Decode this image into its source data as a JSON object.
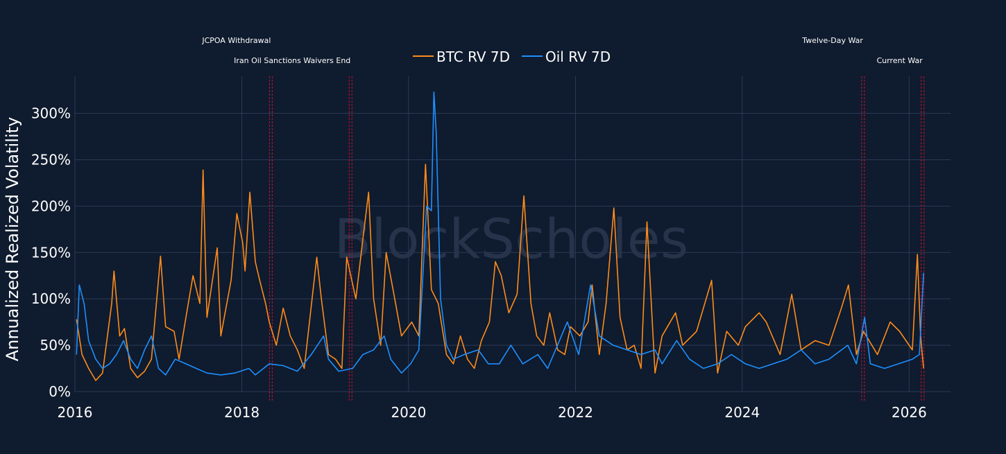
{
  "colors": {
    "background": "#0f1b2e",
    "grid": "#2b3a57",
    "text": "#ffffff",
    "btc": "#ff8c1a",
    "oil": "#1e90ff",
    "event_line": "#c8102e",
    "watermark": "#26334a"
  },
  "watermark": "BlockScholes",
  "chart_data": {
    "type": "line",
    "title": "",
    "xlabel": "",
    "ylabel": "Annualized Realized Volatility",
    "xlim": [
      "2016-01-01",
      "2026-07-01"
    ],
    "ylim": [
      0,
      340
    ],
    "x_ticks": [
      {
        "date": "2016-01-01",
        "label": "2016"
      },
      {
        "date": "2018-01-01",
        "label": "2018"
      },
      {
        "date": "2020-01-01",
        "label": "2020"
      },
      {
        "date": "2022-01-01",
        "label": "2022"
      },
      {
        "date": "2024-01-01",
        "label": "2024"
      },
      {
        "date": "2026-01-01",
        "label": "2026"
      }
    ],
    "y_ticks": [
      {
        "value": 0,
        "label": "0%"
      },
      {
        "value": 50,
        "label": "50%"
      },
      {
        "value": 100,
        "label": "100%"
      },
      {
        "value": 150,
        "label": "150%"
      },
      {
        "value": 200,
        "label": "200%"
      },
      {
        "value": 250,
        "label": "250%"
      },
      {
        "value": 300,
        "label": "300%"
      }
    ],
    "grid": true,
    "legend": {
      "placement": "top-center",
      "entries": [
        "BTC RV 7D",
        "Oil RV 7D"
      ]
    },
    "events": [
      {
        "date": "2018-05-08",
        "label": "JCPOA Withdrawal",
        "label_row": 1
      },
      {
        "date": "2019-04-22",
        "label": "Iran Oil Sanctions Waivers End",
        "label_row": 2
      },
      {
        "date": "2025-06-13",
        "label": "Twelve-Day War",
        "label_row": 1
      },
      {
        "date": "2026-03-01",
        "label": "Current War",
        "label_row": 2
      }
    ],
    "series": [
      {
        "name": "BTC RV 7D",
        "points": [
          [
            "2016-01-08",
            78
          ],
          [
            "2016-02-01",
            40
          ],
          [
            "2016-03-01",
            25
          ],
          [
            "2016-04-01",
            12
          ],
          [
            "2016-05-01",
            20
          ],
          [
            "2016-06-10",
            95
          ],
          [
            "2016-06-20",
            130
          ],
          [
            "2016-07-15",
            60
          ],
          [
            "2016-08-05",
            68
          ],
          [
            "2016-09-01",
            25
          ],
          [
            "2016-10-01",
            15
          ],
          [
            "2016-11-01",
            22
          ],
          [
            "2016-12-01",
            35
          ],
          [
            "2017-01-10",
            146
          ],
          [
            "2017-02-01",
            70
          ],
          [
            "2017-03-10",
            65
          ],
          [
            "2017-04-01",
            35
          ],
          [
            "2017-05-01",
            80
          ],
          [
            "2017-06-01",
            125
          ],
          [
            "2017-07-01",
            95
          ],
          [
            "2017-07-15",
            239
          ],
          [
            "2017-08-01",
            80
          ],
          [
            "2017-09-15",
            155
          ],
          [
            "2017-10-01",
            60
          ],
          [
            "2017-11-15",
            120
          ],
          [
            "2017-12-10",
            192
          ],
          [
            "2018-01-05",
            160
          ],
          [
            "2018-01-15",
            130
          ],
          [
            "2018-02-05",
            215
          ],
          [
            "2018-03-01",
            140
          ],
          [
            "2018-03-20",
            120
          ],
          [
            "2018-04-15",
            95
          ],
          [
            "2018-05-01",
            75
          ],
          [
            "2018-06-01",
            50
          ],
          [
            "2018-07-01",
            90
          ],
          [
            "2018-08-01",
            60
          ],
          [
            "2018-09-01",
            45
          ],
          [
            "2018-10-01",
            25
          ],
          [
            "2018-11-25",
            145
          ],
          [
            "2018-12-15",
            100
          ],
          [
            "2019-01-15",
            40
          ],
          [
            "2019-02-15",
            35
          ],
          [
            "2019-03-15",
            25
          ],
          [
            "2019-04-05",
            145
          ],
          [
            "2019-05-15",
            100
          ],
          [
            "2019-06-15",
            165
          ],
          [
            "2019-07-10",
            215
          ],
          [
            "2019-08-01",
            100
          ],
          [
            "2019-09-01",
            50
          ],
          [
            "2019-09-25",
            150
          ],
          [
            "2019-10-25",
            110
          ],
          [
            "2019-12-01",
            60
          ],
          [
            "2020-01-15",
            75
          ],
          [
            "2020-02-15",
            60
          ],
          [
            "2020-03-15",
            245
          ],
          [
            "2020-04-10",
            110
          ],
          [
            "2020-05-10",
            95
          ],
          [
            "2020-06-15",
            40
          ],
          [
            "2020-07-15",
            30
          ],
          [
            "2020-08-15",
            60
          ],
          [
            "2020-09-15",
            35
          ],
          [
            "2020-10-15",
            25
          ],
          [
            "2020-11-15",
            55
          ],
          [
            "2020-12-20",
            75
          ],
          [
            "2021-01-15",
            140
          ],
          [
            "2021-02-10",
            125
          ],
          [
            "2021-03-15",
            85
          ],
          [
            "2021-04-20",
            105
          ],
          [
            "2021-05-20",
            211
          ],
          [
            "2021-06-20",
            95
          ],
          [
            "2021-07-15",
            60
          ],
          [
            "2021-08-15",
            50
          ],
          [
            "2021-09-10",
            85
          ],
          [
            "2021-10-15",
            45
          ],
          [
            "2021-11-15",
            40
          ],
          [
            "2021-12-10",
            70
          ],
          [
            "2022-01-20",
            60
          ],
          [
            "2022-02-25",
            75
          ],
          [
            "2022-03-15",
            115
          ],
          [
            "2022-04-15",
            40
          ],
          [
            "2022-05-15",
            95
          ],
          [
            "2022-06-18",
            198
          ],
          [
            "2022-07-15",
            80
          ],
          [
            "2022-08-15",
            45
          ],
          [
            "2022-09-15",
            50
          ],
          [
            "2022-10-15",
            25
          ],
          [
            "2022-11-10",
            183
          ],
          [
            "2022-12-15",
            20
          ],
          [
            "2023-01-15",
            60
          ],
          [
            "2023-03-15",
            85
          ],
          [
            "2023-04-15",
            50
          ],
          [
            "2023-06-15",
            65
          ],
          [
            "2023-08-20",
            120
          ],
          [
            "2023-09-15",
            20
          ],
          [
            "2023-10-25",
            65
          ],
          [
            "2023-12-15",
            50
          ],
          [
            "2024-01-15",
            70
          ],
          [
            "2024-03-15",
            85
          ],
          [
            "2024-04-15",
            75
          ],
          [
            "2024-06-15",
            40
          ],
          [
            "2024-08-05",
            105
          ],
          [
            "2024-09-15",
            45
          ],
          [
            "2024-11-15",
            55
          ],
          [
            "2025-01-15",
            50
          ],
          [
            "2025-03-10",
            90
          ],
          [
            "2025-04-10",
            115
          ],
          [
            "2025-05-15",
            40
          ],
          [
            "2025-06-15",
            65
          ],
          [
            "2025-08-15",
            40
          ],
          [
            "2025-10-10",
            75
          ],
          [
            "2025-11-20",
            65
          ],
          [
            "2026-01-15",
            45
          ],
          [
            "2026-02-06",
            148
          ],
          [
            "2026-02-20",
            60
          ],
          [
            "2026-03-05",
            25
          ]
        ]
      },
      {
        "name": "Oil RV 7D",
        "points": [
          [
            "2016-01-08",
            40
          ],
          [
            "2016-01-20",
            115
          ],
          [
            "2016-02-10",
            95
          ],
          [
            "2016-03-01",
            55
          ],
          [
            "2016-04-01",
            35
          ],
          [
            "2016-05-01",
            25
          ],
          [
            "2016-06-01",
            30
          ],
          [
            "2016-07-01",
            40
          ],
          [
            "2016-08-01",
            55
          ],
          [
            "2016-09-01",
            35
          ],
          [
            "2016-10-01",
            25
          ],
          [
            "2016-11-01",
            45
          ],
          [
            "2016-12-01",
            60
          ],
          [
            "2017-01-01",
            25
          ],
          [
            "2017-02-01",
            18
          ],
          [
            "2017-03-15",
            35
          ],
          [
            "2017-05-01",
            30
          ],
          [
            "2017-06-15",
            25
          ],
          [
            "2017-08-01",
            20
          ],
          [
            "2017-10-01",
            18
          ],
          [
            "2017-12-01",
            20
          ],
          [
            "2018-02-01",
            25
          ],
          [
            "2018-03-01",
            18
          ],
          [
            "2018-05-01",
            30
          ],
          [
            "2018-07-01",
            28
          ],
          [
            "2018-09-01",
            22
          ],
          [
            "2018-11-01",
            40
          ],
          [
            "2018-12-25",
            60
          ],
          [
            "2019-01-15",
            35
          ],
          [
            "2019-03-01",
            22
          ],
          [
            "2019-05-01",
            25
          ],
          [
            "2019-06-15",
            40
          ],
          [
            "2019-08-01",
            45
          ],
          [
            "2019-09-16",
            60
          ],
          [
            "2019-10-15",
            35
          ],
          [
            "2019-12-01",
            20
          ],
          [
            "2020-01-10",
            30
          ],
          [
            "2020-02-15",
            45
          ],
          [
            "2020-03-20",
            200
          ],
          [
            "2020-04-10",
            195
          ],
          [
            "2020-04-21",
            323
          ],
          [
            "2020-05-01",
            280
          ],
          [
            "2020-05-20",
            100
          ],
          [
            "2020-06-15",
            50
          ],
          [
            "2020-07-15",
            35
          ],
          [
            "2020-09-01",
            40
          ],
          [
            "2020-11-01",
            45
          ],
          [
            "2020-12-15",
            30
          ],
          [
            "2021-02-01",
            30
          ],
          [
            "2021-03-24",
            50
          ],
          [
            "2021-05-15",
            30
          ],
          [
            "2021-07-20",
            40
          ],
          [
            "2021-09-01",
            25
          ],
          [
            "2021-11-26",
            75
          ],
          [
            "2022-01-15",
            40
          ],
          [
            "2022-03-08",
            115
          ],
          [
            "2022-04-15",
            60
          ],
          [
            "2022-06-15",
            50
          ],
          [
            "2022-08-15",
            45
          ],
          [
            "2022-10-15",
            40
          ],
          [
            "2022-12-15",
            45
          ],
          [
            "2023-01-15",
            30
          ],
          [
            "2023-03-20",
            55
          ],
          [
            "2023-05-15",
            35
          ],
          [
            "2023-07-15",
            25
          ],
          [
            "2023-09-15",
            30
          ],
          [
            "2023-11-15",
            40
          ],
          [
            "2024-01-15",
            30
          ],
          [
            "2024-03-15",
            25
          ],
          [
            "2024-05-15",
            30
          ],
          [
            "2024-07-15",
            35
          ],
          [
            "2024-09-15",
            45
          ],
          [
            "2024-11-15",
            30
          ],
          [
            "2025-01-15",
            35
          ],
          [
            "2025-04-07",
            50
          ],
          [
            "2025-05-15",
            30
          ],
          [
            "2025-06-20",
            80
          ],
          [
            "2025-07-15",
            30
          ],
          [
            "2025-09-15",
            25
          ],
          [
            "2025-11-15",
            30
          ],
          [
            "2026-01-15",
            35
          ],
          [
            "2026-02-15",
            40
          ],
          [
            "2026-03-05",
            128
          ]
        ]
      }
    ]
  }
}
